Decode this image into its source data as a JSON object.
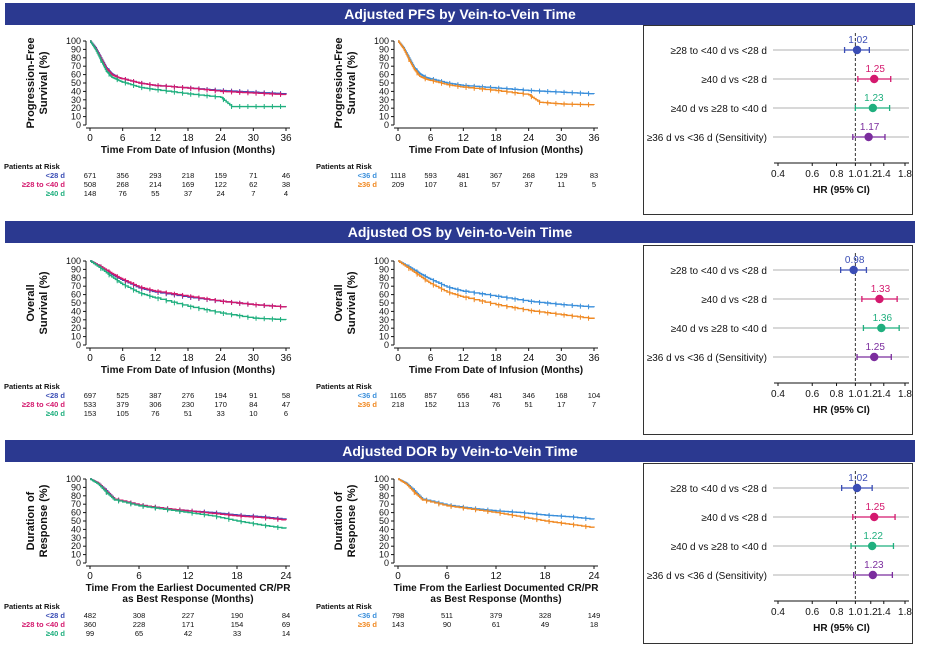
{
  "colors": {
    "banner": "#2B3990",
    "lt28": "#3A4DB5",
    "b28_40": "#D4196E",
    "ge40": "#1FAF7E",
    "lt36": "#3A8FDB",
    "ge36": "#F08A24",
    "sens": "#7B2D9E",
    "ref": "#333333"
  },
  "panels": [
    {
      "banner": "Adjusted PFS by Vein-to-Vein Time",
      "ylabel": [
        "Progression-Free",
        "Survival (%)"
      ],
      "xlabel": [
        "Time From Date of Infusion (Months)"
      ],
      "xticks": [
        "0",
        "6",
        "12",
        "18",
        "24",
        "30",
        "36"
      ],
      "yticks": [
        "0",
        "10",
        "20",
        "30",
        "40",
        "50",
        "60",
        "70",
        "80",
        "90",
        "100"
      ],
      "risk_title": "Patients at Risk",
      "risk_left": {
        "labels": [
          "<28 d",
          "≥28 to <40 d",
          "≥40 d"
        ],
        "rows": [
          [
            "671",
            "356",
            "293",
            "218",
            "159",
            "71",
            "46"
          ],
          [
            "508",
            "268",
            "214",
            "169",
            "122",
            "62",
            "38"
          ],
          [
            "148",
            "76",
            "55",
            "37",
            "24",
            "7",
            "4"
          ]
        ]
      },
      "risk_right": {
        "labels": [
          "<36 d",
          "≥36 d"
        ],
        "rows": [
          [
            "1118",
            "593",
            "481",
            "367",
            "268",
            "129",
            "83"
          ],
          [
            "209",
            "107",
            "81",
            "57",
            "37",
            "11",
            "5"
          ]
        ]
      },
      "forest": {
        "rows": [
          {
            "label": "≥28 to <40 d vs <28 d",
            "hr": "1.02"
          },
          {
            "label": "≥40 d vs <28 d",
            "hr": "1.25"
          },
          {
            "label": "≥40 d vs ≥28 to <40 d",
            "hr": "1.23"
          },
          {
            "label": "≥36 d vs <36 d (Sensitivity)",
            "hr": "1.17"
          }
        ],
        "xticks": [
          "0.4",
          "0.6",
          "0.8",
          "1.0",
          "1.2",
          "1.4",
          "1.8"
        ],
        "xlabel": "HR (95% CI)"
      }
    },
    {
      "banner": "Adjusted OS by Vein-to-Vein Time",
      "ylabel": [
        "Overall",
        "Survival (%)"
      ],
      "xlabel": [
        "Time From Date of Infusion (Months)"
      ],
      "xticks": [
        "0",
        "6",
        "12",
        "18",
        "24",
        "30",
        "36"
      ],
      "yticks": [
        "0",
        "10",
        "20",
        "30",
        "40",
        "50",
        "60",
        "70",
        "80",
        "90",
        "100"
      ],
      "risk_title": "Patients at Risk",
      "risk_left": {
        "labels": [
          "<28 d",
          "≥28 to <40 d",
          "≥40 d"
        ],
        "rows": [
          [
            "697",
            "525",
            "387",
            "276",
            "194",
            "91",
            "58"
          ],
          [
            "533",
            "379",
            "306",
            "230",
            "170",
            "84",
            "47"
          ],
          [
            "153",
            "105",
            "76",
            "51",
            "33",
            "10",
            "6"
          ]
        ]
      },
      "risk_right": {
        "labels": [
          "<36 d",
          "≥36 d"
        ],
        "rows": [
          [
            "1165",
            "857",
            "656",
            "481",
            "346",
            "168",
            "104"
          ],
          [
            "218",
            "152",
            "113",
            "76",
            "51",
            "17",
            "7"
          ]
        ]
      },
      "forest": {
        "rows": [
          {
            "label": "≥28 to <40 d vs <28 d",
            "hr": "0.98"
          },
          {
            "label": "≥40 d vs <28 d",
            "hr": "1.33"
          },
          {
            "label": "≥40 d vs ≥28 to <40 d",
            "hr": "1.36"
          },
          {
            "label": "≥36 d vs <36 d (Sensitivity)",
            "hr": "1.25"
          }
        ],
        "xticks": [
          "0.4",
          "0.6",
          "0.8",
          "1.0",
          "1.2",
          "1.4",
          "1.8"
        ],
        "xlabel": "HR (95% CI)"
      }
    },
    {
      "banner": "Adjusted DOR by Vein-to-Vein Time",
      "ylabel": [
        "Duration of",
        "Response (%)"
      ],
      "xlabel": [
        "Time From the Earliest Documented CR/PR",
        "as Best Response (Months)"
      ],
      "xticks": [
        "0",
        "6",
        "12",
        "18",
        "24"
      ],
      "yticks": [
        "0",
        "10",
        "20",
        "30",
        "40",
        "50",
        "60",
        "70",
        "80",
        "90",
        "100"
      ],
      "risk_title": "Patients at Risk",
      "risk_left": {
        "labels": [
          "<28 d",
          "≥28 to <40 d",
          "≥40 d"
        ],
        "rows": [
          [
            "482",
            "308",
            "227",
            "190",
            "84"
          ],
          [
            "360",
            "228",
            "171",
            "154",
            "69"
          ],
          [
            "99",
            "65",
            "42",
            "33",
            "14"
          ]
        ]
      },
      "risk_right": {
        "labels": [
          "<36 d",
          "≥36 d"
        ],
        "rows": [
          [
            "798",
            "511",
            "379",
            "328",
            "149"
          ],
          [
            "143",
            "90",
            "61",
            "49",
            "18"
          ]
        ]
      },
      "forest": {
        "rows": [
          {
            "label": "≥28 to <40 d vs <28 d",
            "hr": "1.02"
          },
          {
            "label": "≥40 d vs <28 d",
            "hr": "1.25"
          },
          {
            "label": "≥40 d vs ≥28 to <40 d",
            "hr": "1.22"
          },
          {
            "label": "≥36 d vs <36 d (Sensitivity)",
            "hr": "1.23"
          }
        ],
        "xticks": [
          "0.4",
          "0.6",
          "0.8",
          "1.0",
          "1.2",
          "1.4",
          "1.8"
        ],
        "xlabel": "HR (95% CI)"
      }
    }
  ],
  "chart_data": [
    {
      "type": "line",
      "title": "Adjusted PFS by Vein-to-Vein Time",
      "ylabel": "Progression-Free Survival (%)",
      "xlabel": "Time From Date of Infusion (Months)",
      "xlim": [
        0,
        36
      ],
      "ylim": [
        0,
        100
      ],
      "series": [
        {
          "name": "<28 d",
          "color": "#3A4DB5",
          "x": [
            0,
            1,
            2,
            3,
            4,
            5,
            6,
            9,
            12,
            18,
            24,
            30,
            36
          ],
          "y": [
            100,
            92,
            80,
            68,
            61,
            57,
            55,
            50,
            47,
            44,
            41,
            39,
            37
          ]
        },
        {
          "name": "≥28 to <40 d",
          "color": "#D4196E",
          "x": [
            0,
            1,
            2,
            3,
            4,
            5,
            6,
            9,
            12,
            18,
            24,
            30,
            36
          ],
          "y": [
            100,
            91,
            79,
            67,
            60,
            57,
            55,
            50,
            47,
            44,
            40,
            38,
            36
          ]
        },
        {
          "name": "≥40 d",
          "color": "#1FAF7E",
          "x": [
            0,
            1,
            2,
            3,
            4,
            5,
            6,
            9,
            12,
            18,
            24,
            26,
            30,
            36
          ],
          "y": [
            100,
            90,
            77,
            64,
            57,
            54,
            51,
            45,
            42,
            37,
            33,
            22,
            22,
            22
          ]
        }
      ]
    },
    {
      "type": "line",
      "title": "Adjusted PFS by Vein-to-Vein Time",
      "ylabel": "Progression-Free Survival (%)",
      "xlabel": "Time From Date of Infusion (Months)",
      "xlim": [
        0,
        36
      ],
      "ylim": [
        0,
        100
      ],
      "series": [
        {
          "name": "<36 d",
          "color": "#3A8FDB",
          "x": [
            0,
            1,
            2,
            3,
            4,
            5,
            6,
            9,
            12,
            18,
            24,
            30,
            36
          ],
          "y": [
            100,
            92,
            80,
            68,
            61,
            57,
            55,
            50,
            47,
            44,
            41,
            39,
            37
          ]
        },
        {
          "name": "≥36 d",
          "color": "#F08A24",
          "x": [
            0,
            1,
            2,
            3,
            4,
            5,
            6,
            9,
            12,
            18,
            24,
            26,
            30,
            36
          ],
          "y": [
            100,
            91,
            78,
            66,
            58,
            55,
            53,
            48,
            45,
            41,
            36,
            27,
            25,
            24
          ]
        }
      ]
    },
    {
      "type": "forest",
      "title": "Adjusted PFS by Vein-to-Vein Time",
      "xlabel": "HR (95% CI)",
      "xlim": [
        0.4,
        1.8
      ],
      "rows": [
        {
          "label": "≥28 to <40 d vs <28 d",
          "hr": 1.02,
          "lo": 0.88,
          "hi": 1.18
        },
        {
          "label": "≥40 d vs <28 d",
          "hr": 1.25,
          "lo": 1.03,
          "hi": 1.52
        },
        {
          "label": "≥40 d vs ≥28 to <40 d",
          "hr": 1.23,
          "lo": 1.0,
          "hi": 1.5
        },
        {
          "label": "≥36 d vs <36 d (Sensitivity)",
          "hr": 1.17,
          "lo": 0.97,
          "hi": 1.42
        }
      ]
    },
    {
      "type": "line",
      "title": "Adjusted OS by Vein-to-Vein Time",
      "ylabel": "Overall Survival (%)",
      "xlabel": "Time From Date of Infusion (Months)",
      "xlim": [
        0,
        36
      ],
      "ylim": [
        0,
        100
      ],
      "series": [
        {
          "name": "<28 d",
          "color": "#3A4DB5",
          "x": [
            0,
            2,
            4,
            6,
            9,
            12,
            18,
            24,
            30,
            36
          ],
          "y": [
            100,
            93,
            84,
            77,
            68,
            63,
            57,
            52,
            48,
            45
          ]
        },
        {
          "name": "≥28 to <40 d",
          "color": "#D4196E",
          "x": [
            0,
            2,
            4,
            6,
            9,
            12,
            18,
            24,
            30,
            36
          ],
          "y": [
            100,
            93,
            85,
            78,
            69,
            64,
            58,
            52,
            48,
            45
          ]
        },
        {
          "name": "≥40 d",
          "color": "#1FAF7E",
          "x": [
            0,
            2,
            4,
            6,
            9,
            12,
            18,
            24,
            30,
            36
          ],
          "y": [
            100,
            91,
            81,
            72,
            62,
            56,
            46,
            38,
            32,
            30
          ]
        }
      ]
    },
    {
      "type": "line",
      "title": "Adjusted OS by Vein-to-Vein Time",
      "ylabel": "Overall Survival (%)",
      "xlabel": "Time From Date of Infusion (Months)",
      "xlim": [
        0,
        36
      ],
      "ylim": [
        0,
        100
      ],
      "series": [
        {
          "name": "<36 d",
          "color": "#3A8FDB",
          "x": [
            0,
            2,
            4,
            6,
            9,
            12,
            18,
            24,
            30,
            36
          ],
          "y": [
            100,
            93,
            85,
            78,
            69,
            64,
            58,
            52,
            48,
            45
          ]
        },
        {
          "name": "≥36 d",
          "color": "#F08A24",
          "x": [
            0,
            2,
            4,
            6,
            9,
            12,
            18,
            24,
            30,
            36
          ],
          "y": [
            100,
            91,
            82,
            73,
            63,
            57,
            48,
            41,
            36,
            31
          ]
        }
      ]
    },
    {
      "type": "forest",
      "title": "Adjusted OS by Vein-to-Vein Time",
      "xlabel": "HR (95% CI)",
      "xlim": [
        0.4,
        1.8
      ],
      "rows": [
        {
          "label": "≥28 to <40 d vs <28 d",
          "hr": 0.98,
          "lo": 0.84,
          "hi": 1.14
        },
        {
          "label": "≥40 d vs <28 d",
          "hr": 1.33,
          "lo": 1.08,
          "hi": 1.64
        },
        {
          "label": "≥40 d vs ≥28 to <40 d",
          "hr": 1.36,
          "lo": 1.1,
          "hi": 1.68
        },
        {
          "label": "≥36 d vs <36 d (Sensitivity)",
          "hr": 1.25,
          "lo": 1.02,
          "hi": 1.53
        }
      ]
    },
    {
      "type": "line",
      "title": "Adjusted DOR by Vein-to-Vein Time",
      "ylabel": "Duration of Response (%)",
      "xlabel": "Time From the Earliest Documented CR/PR as Best Response (Months)",
      "xlim": [
        0,
        24
      ],
      "ylim": [
        0,
        100
      ],
      "series": [
        {
          "name": "<28 d",
          "color": "#3A4DB5",
          "x": [
            0,
            1,
            2,
            3,
            6,
            9,
            12,
            15,
            18,
            21,
            24
          ],
          "y": [
            100,
            95,
            86,
            76,
            69,
            65,
            62,
            60,
            57,
            55,
            52
          ]
        },
        {
          "name": "≥28 to <40 d",
          "color": "#D4196E",
          "x": [
            0,
            1,
            2,
            3,
            6,
            9,
            12,
            15,
            18,
            21,
            24
          ],
          "y": [
            100,
            95,
            85,
            76,
            69,
            65,
            62,
            59,
            56,
            54,
            51
          ]
        },
        {
          "name": "≥40 d",
          "color": "#1FAF7E",
          "x": [
            0,
            1,
            2,
            3,
            6,
            9,
            12,
            15,
            18,
            21,
            24
          ],
          "y": [
            100,
            94,
            84,
            75,
            68,
            64,
            60,
            56,
            50,
            45,
            41
          ]
        }
      ]
    },
    {
      "type": "line",
      "title": "Adjusted DOR by Vein-to-Vein Time",
      "ylabel": "Duration of Response (%)",
      "xlabel": "Time From the Earliest Documented CR/PR as Best Response (Months)",
      "xlim": [
        0,
        24
      ],
      "ylim": [
        0,
        100
      ],
      "series": [
        {
          "name": "<36 d",
          "color": "#3A8FDB",
          "x": [
            0,
            1,
            2,
            3,
            6,
            9,
            12,
            15,
            18,
            21,
            24
          ],
          "y": [
            100,
            95,
            86,
            76,
            69,
            65,
            62,
            60,
            57,
            55,
            52
          ]
        },
        {
          "name": "≥36 d",
          "color": "#F08A24",
          "x": [
            0,
            1,
            2,
            3,
            6,
            9,
            12,
            15,
            18,
            21,
            24
          ],
          "y": [
            100,
            94,
            84,
            75,
            68,
            64,
            60,
            55,
            50,
            46,
            42
          ]
        }
      ]
    },
    {
      "type": "forest",
      "title": "Adjusted DOR by Vein-to-Vein Time",
      "xlabel": "HR (95% CI)",
      "xlim": [
        0.4,
        1.8
      ],
      "rows": [
        {
          "label": "≥28 to <40 d vs <28 d",
          "hr": 1.02,
          "lo": 0.85,
          "hi": 1.22
        },
        {
          "label": "≥40 d vs <28 d",
          "hr": 1.25,
          "lo": 0.97,
          "hi": 1.6
        },
        {
          "label": "≥40 d vs ≥28 to <40 d",
          "hr": 1.22,
          "lo": 0.95,
          "hi": 1.57
        },
        {
          "label": "≥36 d vs <36 d (Sensitivity)",
          "hr": 1.23,
          "lo": 0.98,
          "hi": 1.55
        }
      ]
    }
  ]
}
